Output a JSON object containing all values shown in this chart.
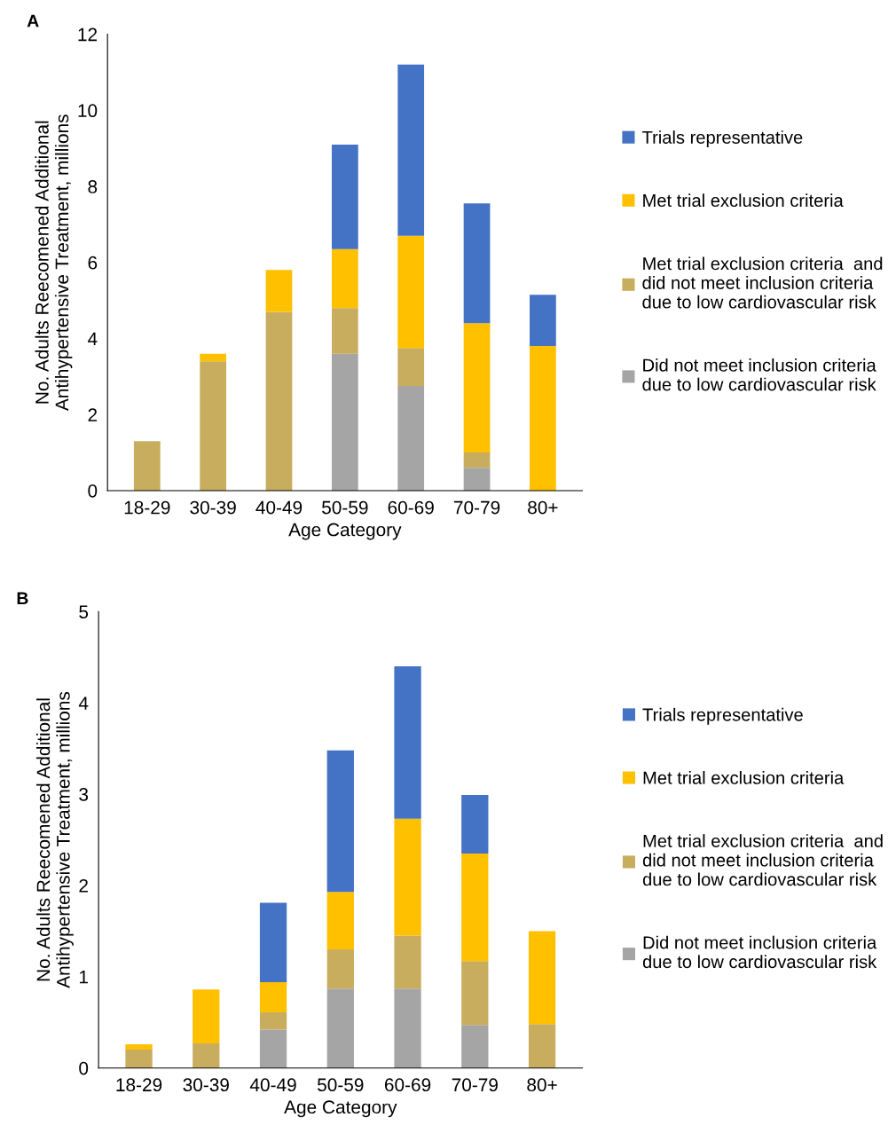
{
  "chart_data": [
    {
      "type": "bar",
      "title": "A",
      "stacked": true,
      "xlabel": "Age Category",
      "ylabel": "No. Adults Reecomened Additional\nAntihypertensive Treatment, millions",
      "categories": [
        "18-29",
        "30-39",
        "40-49",
        "50-59",
        "60-69",
        "70-79",
        "80+"
      ],
      "ylim": [
        0,
        12
      ],
      "yticks": [
        0,
        2,
        4,
        6,
        8,
        10,
        12
      ],
      "grid": false,
      "legend": "right",
      "series": [
        {
          "name": "Did not meet inclusion criteria\ndue to low cardiovascular risk",
          "color": "#a5a5a5",
          "values": [
            0,
            0,
            0,
            3.6,
            2.75,
            0.6,
            0
          ]
        },
        {
          "name": "Met trial exclusion criteria  and\ndid not meet inclusion criteria\ndue to low cardiovascular risk",
          "color": "#c9ad5e",
          "values": [
            1.3,
            3.4,
            4.7,
            1.2,
            1.0,
            0.4,
            0
          ]
        },
        {
          "name": "Met trial exclusion criteria",
          "color": "#ffc000",
          "values": [
            0,
            0.2,
            1.1,
            1.55,
            2.95,
            3.4,
            3.8
          ]
        },
        {
          "name": "Trials representative",
          "color": "#4472c4",
          "values": [
            0,
            0,
            0,
            2.75,
            4.5,
            3.15,
            1.35
          ]
        }
      ]
    },
    {
      "type": "bar",
      "title": "B",
      "stacked": true,
      "xlabel": "Age Category",
      "ylabel": "No. Adults Reecomened Additional\nAntihypertensive Treatment, millions",
      "categories": [
        "18-29",
        "30-39",
        "40-49",
        "50-59",
        "60-69",
        "70-79",
        "80+"
      ],
      "ylim": [
        0,
        5
      ],
      "yticks": [
        0,
        1,
        2,
        3,
        4,
        5
      ],
      "grid": false,
      "legend": "right",
      "series": [
        {
          "name": "Did not meet inclusion criteria\ndue to low cardiovascular risk",
          "color": "#a5a5a5",
          "values": [
            0,
            0,
            0.42,
            0.87,
            0.87,
            0.47,
            0
          ]
        },
        {
          "name": "Met trial exclusion criteria  and\ndid not meet inclusion criteria\ndue to low cardiovascular risk",
          "color": "#c9ad5e",
          "values": [
            0.2,
            0.27,
            0.19,
            0.43,
            0.58,
            0.7,
            0.48
          ]
        },
        {
          "name": "Met trial exclusion criteria",
          "color": "#ffc000",
          "values": [
            0.06,
            0.59,
            0.33,
            0.63,
            1.28,
            1.18,
            1.02
          ]
        },
        {
          "name": "Trials representative",
          "color": "#4472c4",
          "values": [
            0,
            0,
            0.87,
            1.55,
            1.67,
            0.64,
            0
          ]
        }
      ]
    }
  ]
}
